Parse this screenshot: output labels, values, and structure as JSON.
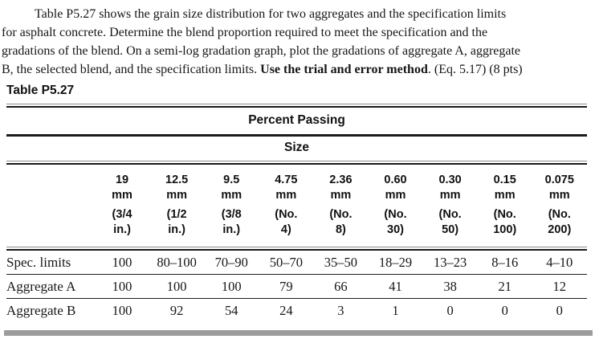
{
  "problem": {
    "lines": [
      [
        {
          "text": "Table P5.27 shows the grain size distribution for two aggregates and the specification limits",
          "bold": false
        }
      ],
      [
        {
          "text": "for asphalt concrete. Determine the blend proportion required to meet the specification and the",
          "bold": false
        }
      ],
      [
        {
          "text": "gradations of the blend. On a semi-log gradation graph, plot the gradations of aggregate A, aggregate",
          "bold": false
        }
      ],
      [
        {
          "text": "B, the selected blend, and the specification limits. ",
          "bold": false
        },
        {
          "text": "Use the trial and error method",
          "bold": true
        },
        {
          "text": ". (Eq. 5.17) (8 pts)",
          "bold": false
        }
      ]
    ]
  },
  "table": {
    "caption": "Table P5.27",
    "group_header": "Percent Passing",
    "sub_header": "Size",
    "columns": [
      {
        "lines": [
          "19",
          "mm",
          "(3/4",
          "in.)"
        ]
      },
      {
        "lines": [
          "12.5",
          "mm",
          "(1/2",
          "in.)"
        ]
      },
      {
        "lines": [
          "9.5",
          "mm",
          "(3/8",
          "in.)"
        ]
      },
      {
        "lines": [
          "4.75",
          "mm",
          "(No.",
          "4)"
        ]
      },
      {
        "lines": [
          "2.36",
          "mm",
          "(No.",
          "8)"
        ]
      },
      {
        "lines": [
          "0.60",
          "mm",
          "(No.",
          "30)"
        ]
      },
      {
        "lines": [
          "0.30",
          "mm",
          "(No.",
          "50)"
        ]
      },
      {
        "lines": [
          "0.15",
          "mm",
          "(No.",
          "100)"
        ]
      },
      {
        "lines": [
          "0.075",
          "mm",
          "(No.",
          "200)"
        ]
      }
    ],
    "rows": [
      {
        "label": "Spec. limits",
        "values": [
          "100",
          "80–100",
          "70–90",
          "50–70",
          "35–50",
          "18–29",
          "13–23",
          "8–16",
          "4–10"
        ]
      },
      {
        "label": "Aggregate A",
        "values": [
          "100",
          "100",
          "100",
          "79",
          "66",
          "41",
          "38",
          "21",
          "12"
        ]
      },
      {
        "label": "Aggregate B",
        "values": [
          "100",
          "92",
          "54",
          "24",
          "3",
          "1",
          "0",
          "0",
          "0"
        ]
      }
    ]
  }
}
